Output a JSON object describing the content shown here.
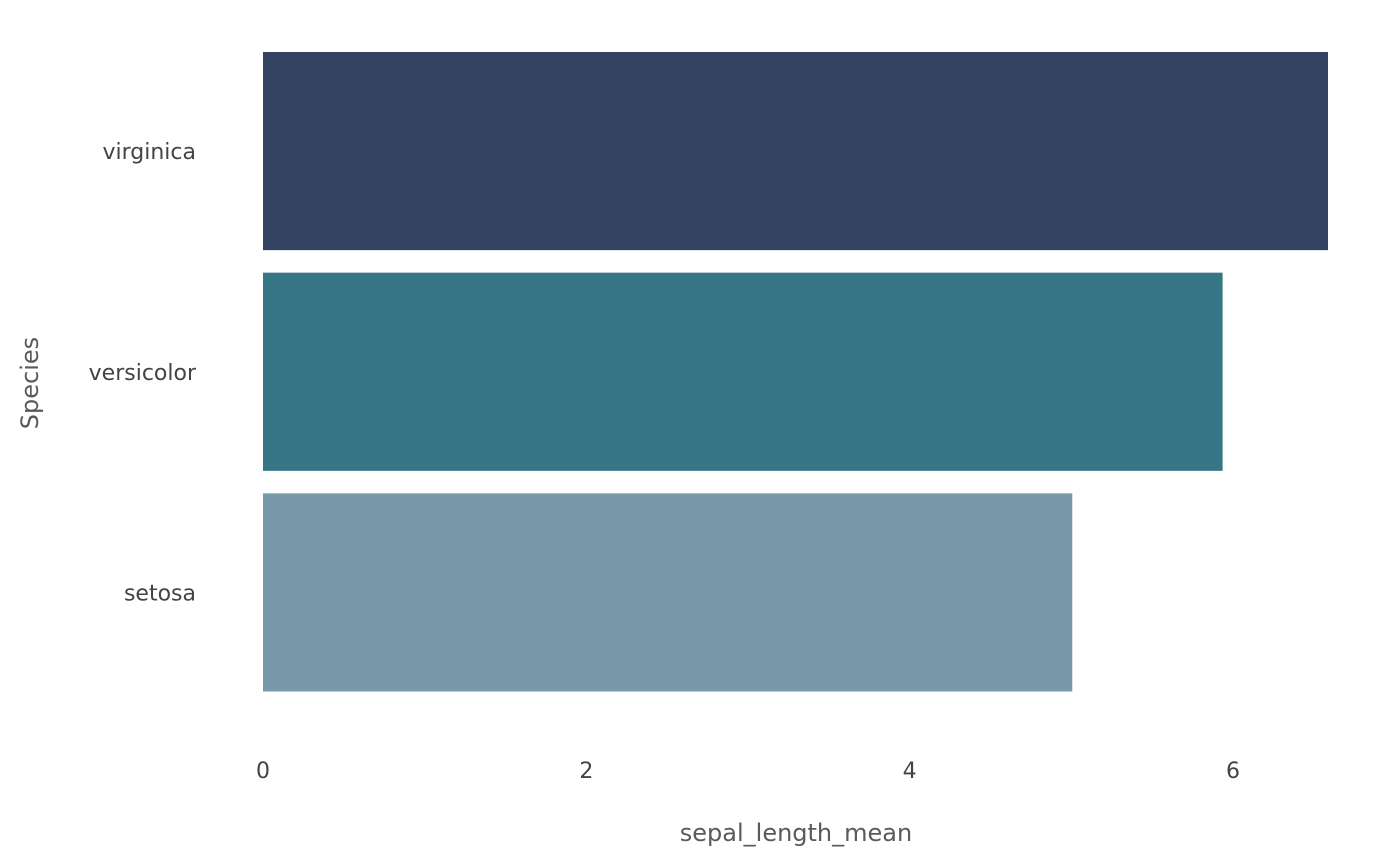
{
  "chart_data": {
    "type": "bar",
    "orientation": "horizontal",
    "categories": [
      "virginica",
      "versicolor",
      "setosa"
    ],
    "values": [
      6.588,
      5.936,
      5.006
    ],
    "colors": [
      "#334361",
      "#367686",
      "#7799a9"
    ],
    "xlabel": "sepal_length_mean",
    "ylabel": "Species",
    "xlim": [
      0,
      6.588
    ],
    "xticks": [
      "0",
      "2",
      "4",
      "6"
    ],
    "grid": false,
    "legend": "none"
  }
}
